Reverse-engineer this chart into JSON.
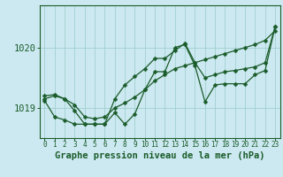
{
  "title": "Graphe pression niveau de la mer (hPa)",
  "x_labels": [
    0,
    1,
    2,
    3,
    4,
    5,
    6,
    7,
    8,
    9,
    10,
    11,
    12,
    13,
    14,
    15,
    16,
    17,
    18,
    19,
    20,
    21,
    22,
    23
  ],
  "ylim": [
    1018.5,
    1020.7
  ],
  "yticks": [
    1019,
    1020
  ],
  "background_color": "#cce8f0",
  "grid_color": "#99cccc",
  "line_color": "#1a5c2a",
  "line1": [
    1019.15,
    1019.2,
    1019.15,
    1019.05,
    1018.85,
    1018.82,
    1018.85,
    1019.0,
    1019.08,
    1019.18,
    1019.3,
    1019.45,
    1019.55,
    1019.65,
    1019.7,
    1019.75,
    1019.8,
    1019.85,
    1019.9,
    1019.95,
    1020.0,
    1020.05,
    1020.12,
    1020.28
  ],
  "line2": [
    1019.12,
    1018.85,
    1018.8,
    1018.73,
    1018.73,
    1018.73,
    1018.73,
    1018.92,
    1018.73,
    1018.9,
    1019.3,
    1019.6,
    1019.6,
    1020.0,
    1020.05,
    1019.7,
    1019.1,
    1019.38,
    1019.4,
    1019.4,
    1019.4,
    1019.55,
    1019.62,
    1020.35
  ],
  "line3": [
    1019.2,
    1019.22,
    1019.15,
    1018.95,
    1018.73,
    1018.73,
    1018.73,
    1019.15,
    1019.38,
    1019.52,
    1019.65,
    1019.82,
    1019.82,
    1019.95,
    1020.07,
    1019.75,
    1019.5,
    1019.55,
    1019.6,
    1019.62,
    1019.65,
    1019.68,
    1019.75,
    1020.35
  ],
  "ylabel_fontsize": 7.5,
  "xlabel_fontsize": 5.5,
  "title_fontsize": 7.5,
  "marker_size": 2.5,
  "line_width": 0.9
}
